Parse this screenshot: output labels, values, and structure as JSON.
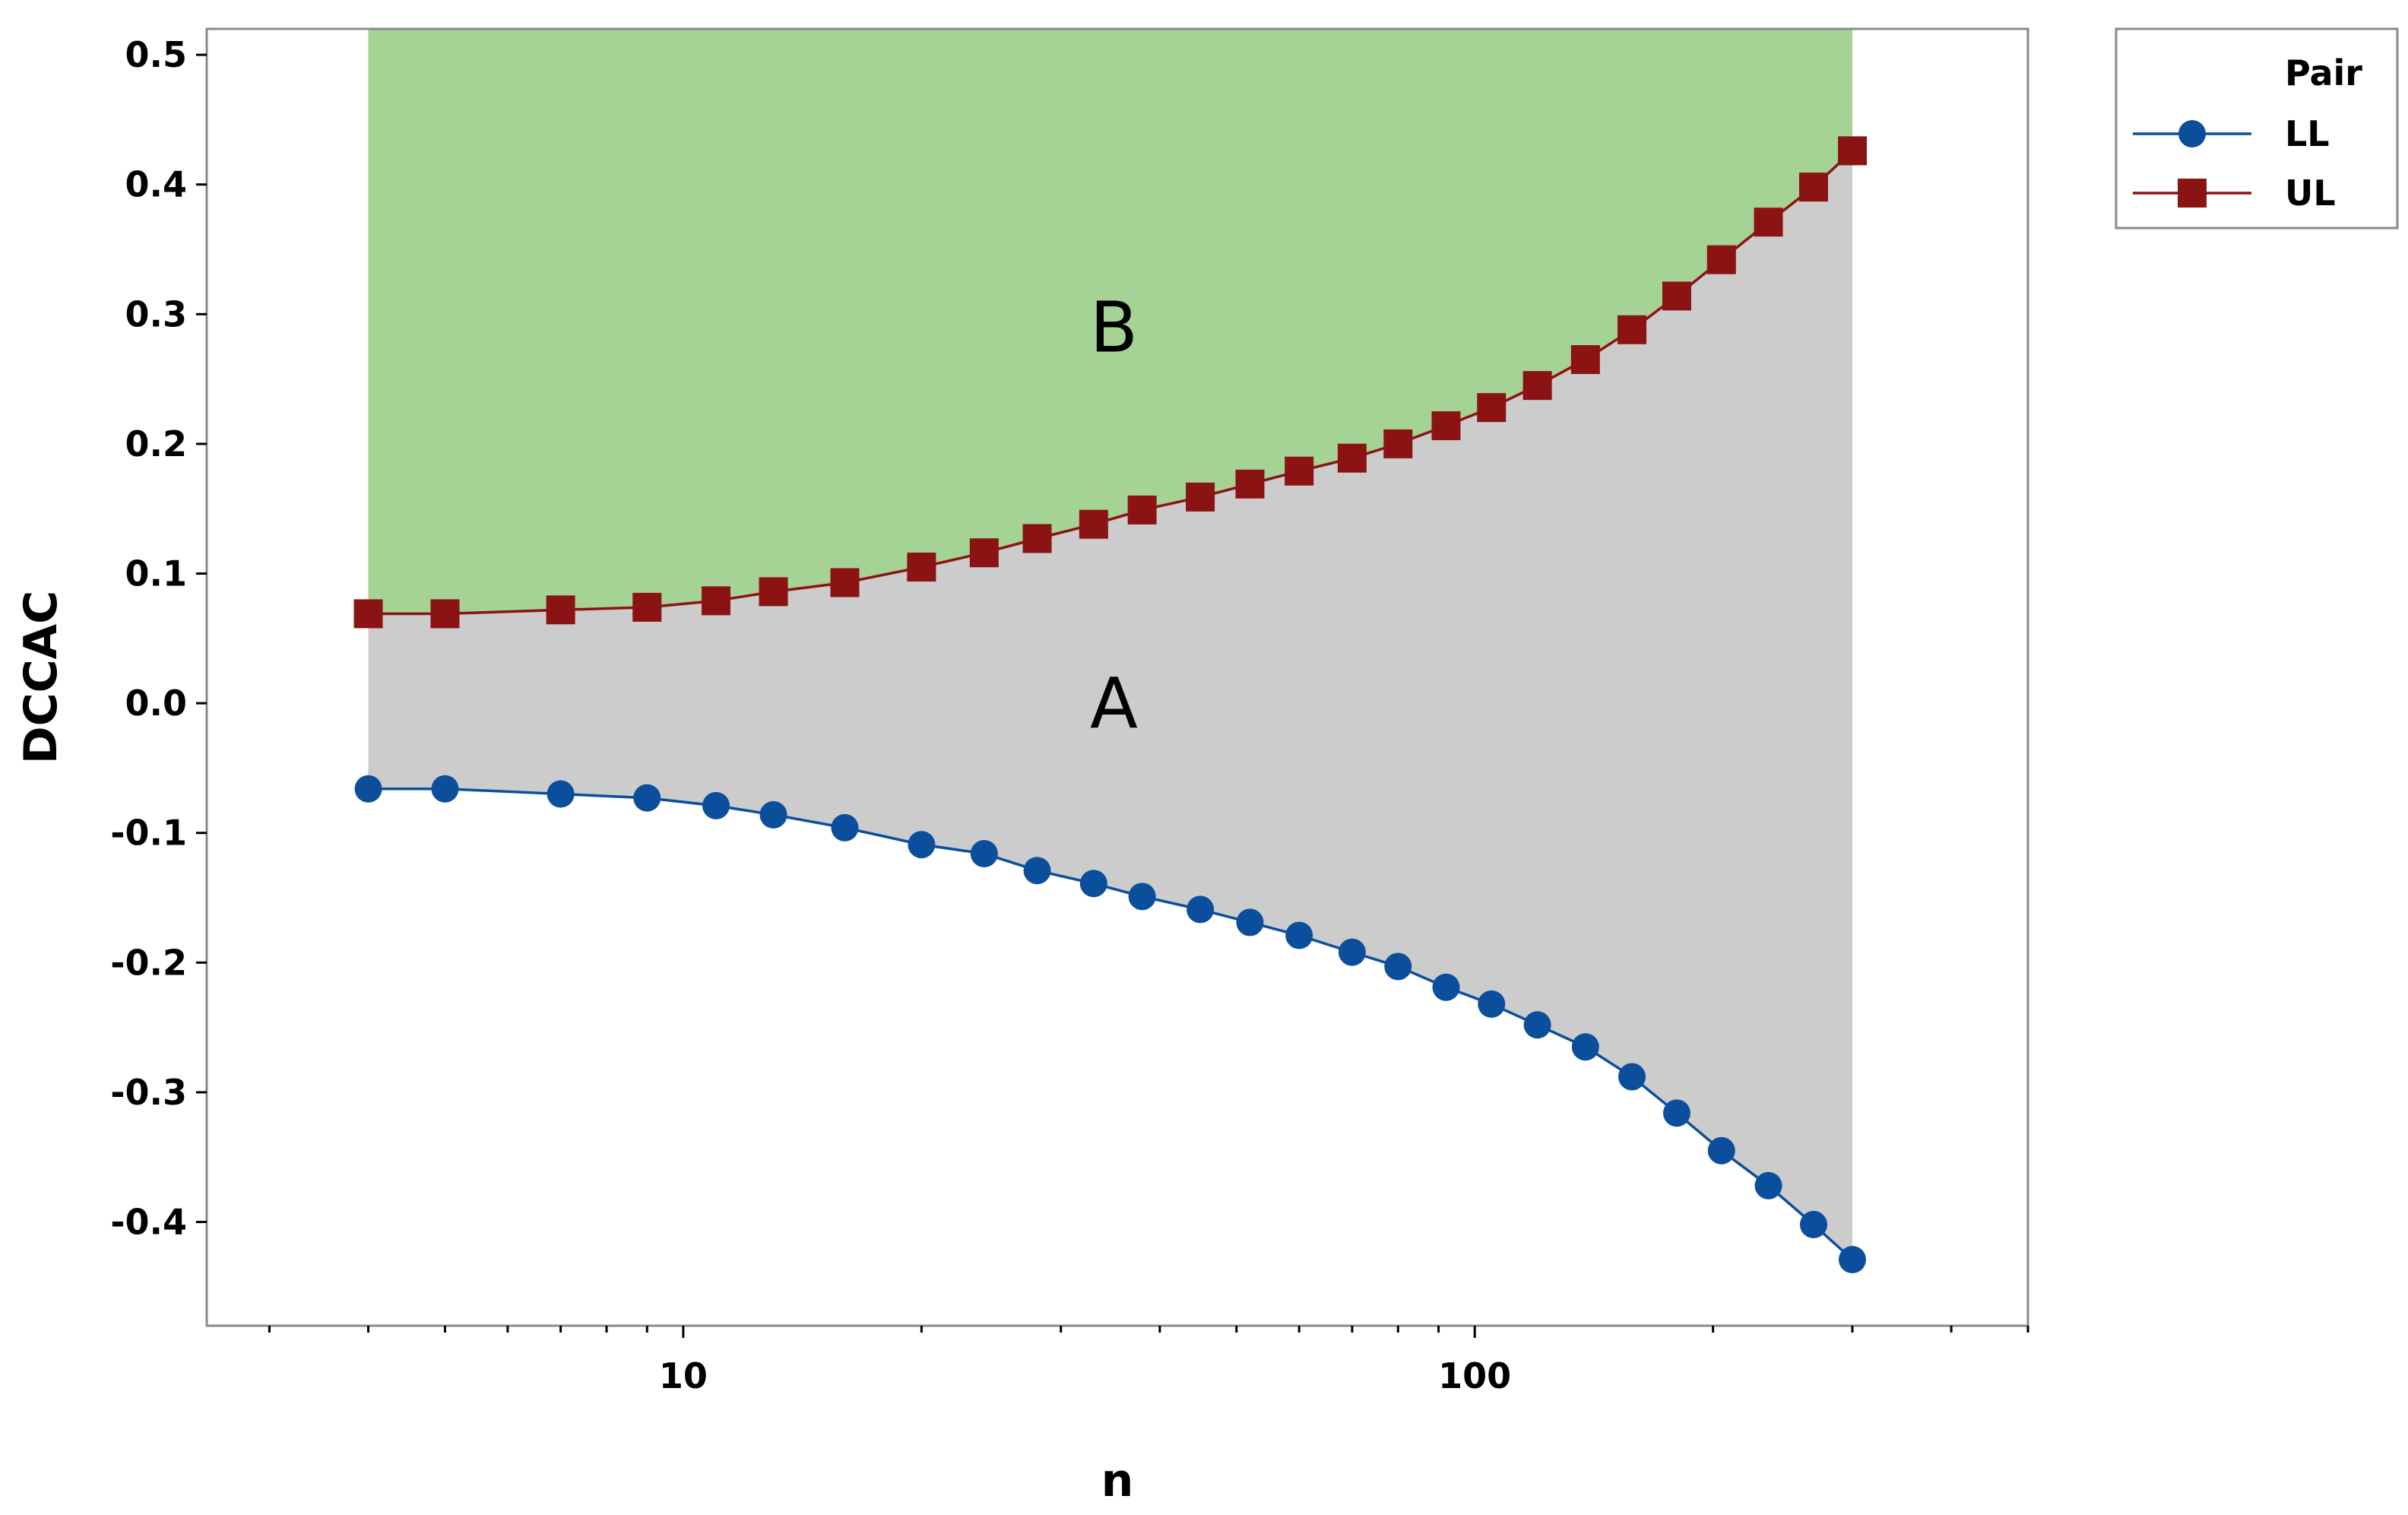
{
  "chart_data": {
    "type": "line",
    "xlabel": "n",
    "ylabel": "DCCAC",
    "x_scale": "log",
    "xlim": [
      2.5,
      500
    ],
    "ylim": [
      -0.48,
      0.52
    ],
    "x_ticks": [
      10,
      100
    ],
    "x_tick_labels": [
      "10",
      "100"
    ],
    "y_ticks": [
      0.5,
      0.4,
      0.3,
      0.2,
      0.1,
      0.0,
      -0.1,
      -0.2,
      -0.3,
      -0.4
    ],
    "y_tick_labels": [
      "0.5",
      "0.4",
      "0.3",
      "0.2",
      "0.1",
      "0.0",
      "-0.1",
      "-0.2",
      "-0.3",
      "-0.4"
    ],
    "legend": {
      "title": "Pair",
      "position": "right-outside-top"
    },
    "grid": false,
    "x": [
      4,
      5,
      7,
      9,
      11,
      13,
      16,
      20,
      24,
      28,
      33,
      38,
      45,
      52,
      60,
      70,
      80,
      92,
      105,
      120,
      138,
      158,
      180,
      205,
      235,
      268,
      300
    ],
    "series": [
      {
        "name": "LL",
        "color": "#0b4f9c",
        "marker": "circle",
        "values": [
          -0.066,
          -0.066,
          -0.07,
          -0.073,
          -0.079,
          -0.086,
          -0.096,
          -0.109,
          -0.116,
          -0.129,
          -0.139,
          -0.149,
          -0.159,
          -0.169,
          -0.179,
          -0.192,
          -0.203,
          -0.219,
          -0.232,
          -0.248,
          -0.265,
          -0.288,
          -0.316,
          -0.345,
          -0.372,
          -0.402,
          -0.429
        ]
      },
      {
        "name": "UL",
        "color": "#8b1313",
        "marker": "square",
        "values": [
          0.069,
          0.069,
          0.072,
          0.074,
          0.079,
          0.086,
          0.093,
          0.105,
          0.116,
          0.127,
          0.138,
          0.149,
          0.159,
          0.169,
          0.179,
          0.189,
          0.2,
          0.214,
          0.228,
          0.245,
          0.265,
          0.288,
          0.314,
          0.342,
          0.371,
          0.398,
          0.426
        ]
      }
    ],
    "regions": [
      {
        "label": "B",
        "color": "#a5d396",
        "between": [
          "UL",
          "top"
        ],
        "label_at": [
          35,
          0.29
        ]
      },
      {
        "label": "A",
        "color": "#cccccc",
        "between": [
          "LL",
          "UL"
        ],
        "label_at": [
          35,
          0.0
        ]
      }
    ]
  }
}
